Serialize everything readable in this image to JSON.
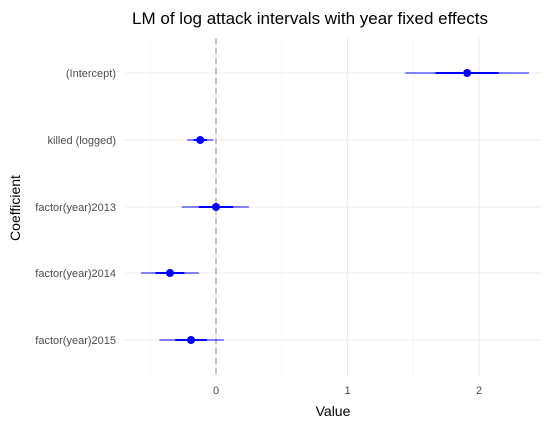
{
  "chart_data": {
    "type": "coefficient-plot",
    "title": "LM of log attack intervals with year fixed effects",
    "xlabel": "Value",
    "ylabel": "Coefficient",
    "xlim": [
      -0.6,
      2.5
    ],
    "x_ticks": [
      0,
      1,
      2
    ],
    "x_tick_labels": [
      "0",
      "1",
      "2"
    ],
    "grid": true,
    "reference_line": 0,
    "colors": {
      "point": "#0000ff",
      "grid_major": "#ebebeb",
      "grid_minor": "#f5f5f5",
      "reference": "#b3b3b3"
    },
    "coefficients": [
      {
        "label": "(Intercept)",
        "estimate": 1.91,
        "ci_inner": [
          1.67,
          2.15
        ],
        "ci_outer": [
          1.44,
          2.38
        ]
      },
      {
        "label": "killed (logged)",
        "estimate": -0.12,
        "ci_inner": [
          -0.17,
          -0.07
        ],
        "ci_outer": [
          -0.22,
          -0.02
        ]
      },
      {
        "label": "factor(year)2013",
        "estimate": 0.0,
        "ci_inner": [
          -0.13,
          0.13
        ],
        "ci_outer": [
          -0.26,
          0.25
        ]
      },
      {
        "label": "factor(year)2014",
        "estimate": -0.35,
        "ci_inner": [
          -0.46,
          -0.24
        ],
        "ci_outer": [
          -0.57,
          -0.13
        ]
      },
      {
        "label": "factor(year)2015",
        "estimate": -0.19,
        "ci_inner": [
          -0.31,
          -0.07
        ],
        "ci_outer": [
          -0.43,
          0.06
        ]
      }
    ]
  }
}
